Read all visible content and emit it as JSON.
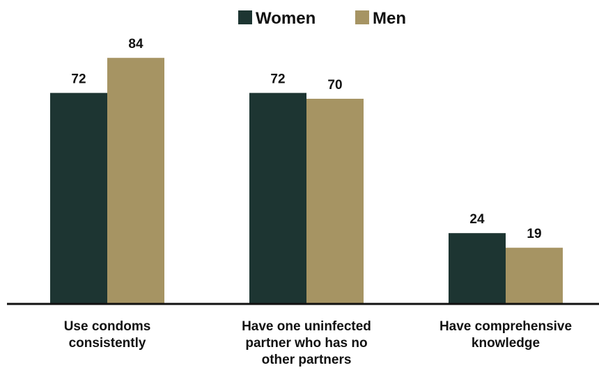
{
  "chart_data": {
    "type": "bar",
    "categories": [
      [
        "Use condoms",
        "consistently"
      ],
      [
        "Have one uninfected",
        "partner who has no",
        "other partners"
      ],
      [
        "Have comprehensive",
        "knowledge"
      ]
    ],
    "series": [
      {
        "name": "Women",
        "color": "#1d3532",
        "values": [
          72,
          72,
          24
        ]
      },
      {
        "name": "Men",
        "color": "#a69463",
        "values": [
          84,
          70,
          19
        ]
      }
    ],
    "ylim": [
      0,
      100
    ],
    "grid": false,
    "legend": "top-center",
    "data_labels": true
  }
}
